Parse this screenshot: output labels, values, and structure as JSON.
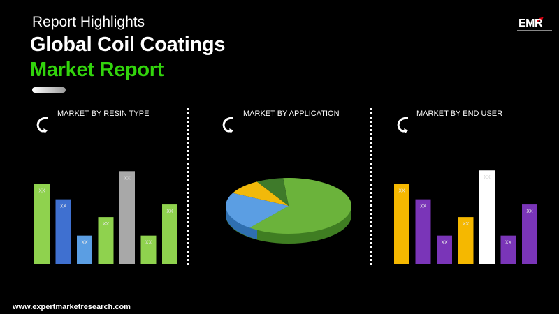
{
  "header": {
    "kicker": "Report Highlights",
    "title_line1": "Global Coil Coatings",
    "title_line2": "Market Report",
    "title_accent_color": "#32d40c"
  },
  "logo": {
    "text": "EMR"
  },
  "sections": [
    {
      "label": "MARKET BY RESIN TYPE",
      "icon": "curved-arrow-icon"
    },
    {
      "label": "MARKET BY APPLICATION",
      "icon": "curved-arrow-icon"
    },
    {
      "label": "MARKET BY END USER",
      "icon": "curved-arrow-icon"
    }
  ],
  "chart_data": [
    {
      "type": "bar",
      "title": "MARKET BY RESIN TYPE",
      "categories": [
        "",
        "",
        "",
        "",
        "",
        "",
        ""
      ],
      "values": [
        108,
        87,
        38,
        63,
        125,
        38,
        80
      ],
      "data_labels": [
        "XX",
        "XX",
        "XX",
        "XX",
        "XX",
        "XX",
        "XX"
      ],
      "colors": [
        "#8fd24e",
        "#3f70d0",
        "#5b9ee3",
        "#8fd24e",
        "#a8a8a8",
        "#8fd24e",
        "#8fd24e"
      ],
      "ylim": [
        0,
        130
      ]
    },
    {
      "type": "pie",
      "title": "MARKET BY APPLICATION",
      "values": [
        62,
        22,
        9,
        7
      ],
      "colors": [
        "#6bb33b",
        "#5b9ee3",
        "#f2b90a",
        "#3e7a2a"
      ]
    },
    {
      "type": "bar",
      "title": "MARKET BY END USER",
      "categories": [
        "",
        "",
        "",
        "",
        "",
        "",
        ""
      ],
      "values": [
        108,
        87,
        38,
        63,
        126,
        38,
        80
      ],
      "data_labels": [
        "XX",
        "XX",
        "XX",
        "XX",
        "XX",
        "XX",
        "XX"
      ],
      "colors": [
        "#f5b800",
        "#7a35b8",
        "#7a35b8",
        "#f5b800",
        "#ffffff",
        "#7a35b8",
        "#7a35b8"
      ],
      "ylim": [
        0,
        130
      ]
    }
  ],
  "footer": {
    "url": "www.expertmarketresearch.com"
  }
}
